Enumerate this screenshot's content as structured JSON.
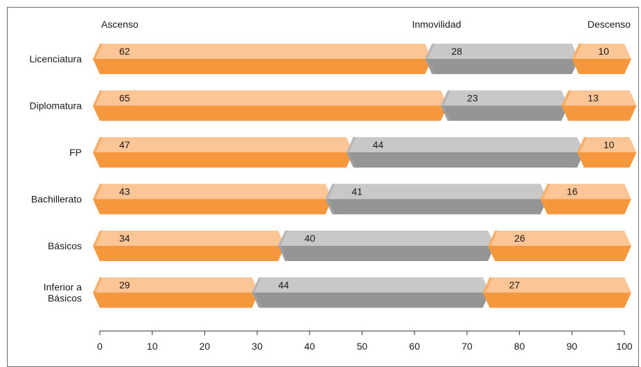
{
  "chart_data": {
    "type": "bar",
    "stacked": true,
    "orientation": "horizontal",
    "title": "",
    "xlabel": "",
    "ylabel": "",
    "xlim": [
      0,
      100
    ],
    "xticks": [
      "0",
      "10",
      "20",
      "30",
      "40",
      "50",
      "60",
      "70",
      "80",
      "90",
      "100"
    ],
    "legend_position": "top",
    "categories": [
      [
        "Licenciatura"
      ],
      [
        "Diplomatura"
      ],
      [
        "FP"
      ],
      [
        "Bachillerato"
      ],
      [
        "Básicos"
      ],
      [
        "Inferior a",
        "Básicos"
      ]
    ],
    "series": [
      {
        "name": "Ascenso",
        "values": [
          62,
          65,
          47,
          43,
          34,
          29
        ],
        "color_top": "#fcc596",
        "color_bottom": "#f4973d",
        "color_face": "#f59a45"
      },
      {
        "name": "Inmovilidad",
        "values": [
          28,
          23,
          44,
          41,
          40,
          44
        ],
        "color_top": "#c8c8c8",
        "color_bottom": "#959595",
        "color_face": "#a9a9a9"
      },
      {
        "name": "Descenso",
        "values": [
          10,
          13,
          10,
          16,
          26,
          27
        ],
        "color_top": "#fcc596",
        "color_bottom": "#f4973d",
        "color_face": "#f59a45"
      }
    ]
  }
}
